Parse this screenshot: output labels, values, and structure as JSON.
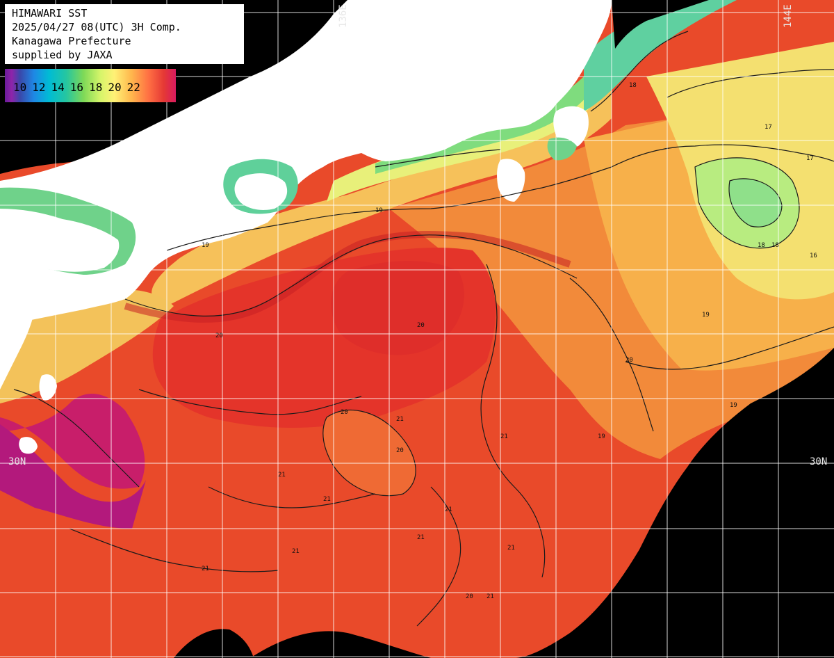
{
  "info": {
    "line1": "HIMAWARI SST",
    "line2": "2025/04/27 08(UTC) 3H Comp.",
    "line3": "Kanagawa Prefecture",
    "line4": "supplied by JAXA"
  },
  "legend": {
    "labels": [
      "10",
      "12",
      "14",
      "16",
      "18",
      "20",
      "22"
    ]
  },
  "graticule": {
    "lon_labels": [
      "136E",
      "144E"
    ],
    "lat_labels": [
      "30N",
      "30N"
    ]
  },
  "contour_labels": [
    "18",
    "19",
    "19",
    "19",
    "20",
    "20",
    "20",
    "21",
    "21",
    "21",
    "17",
    "17",
    "16",
    "19",
    "20",
    "19",
    "18",
    "18",
    "20",
    "21",
    "21",
    "21",
    "21",
    "21",
    "20",
    "21",
    "21"
  ],
  "colors": {
    "land": "#ffffff",
    "nodata": "#000000",
    "grid": "#ffffff",
    "contour": "#1a1a1a"
  }
}
